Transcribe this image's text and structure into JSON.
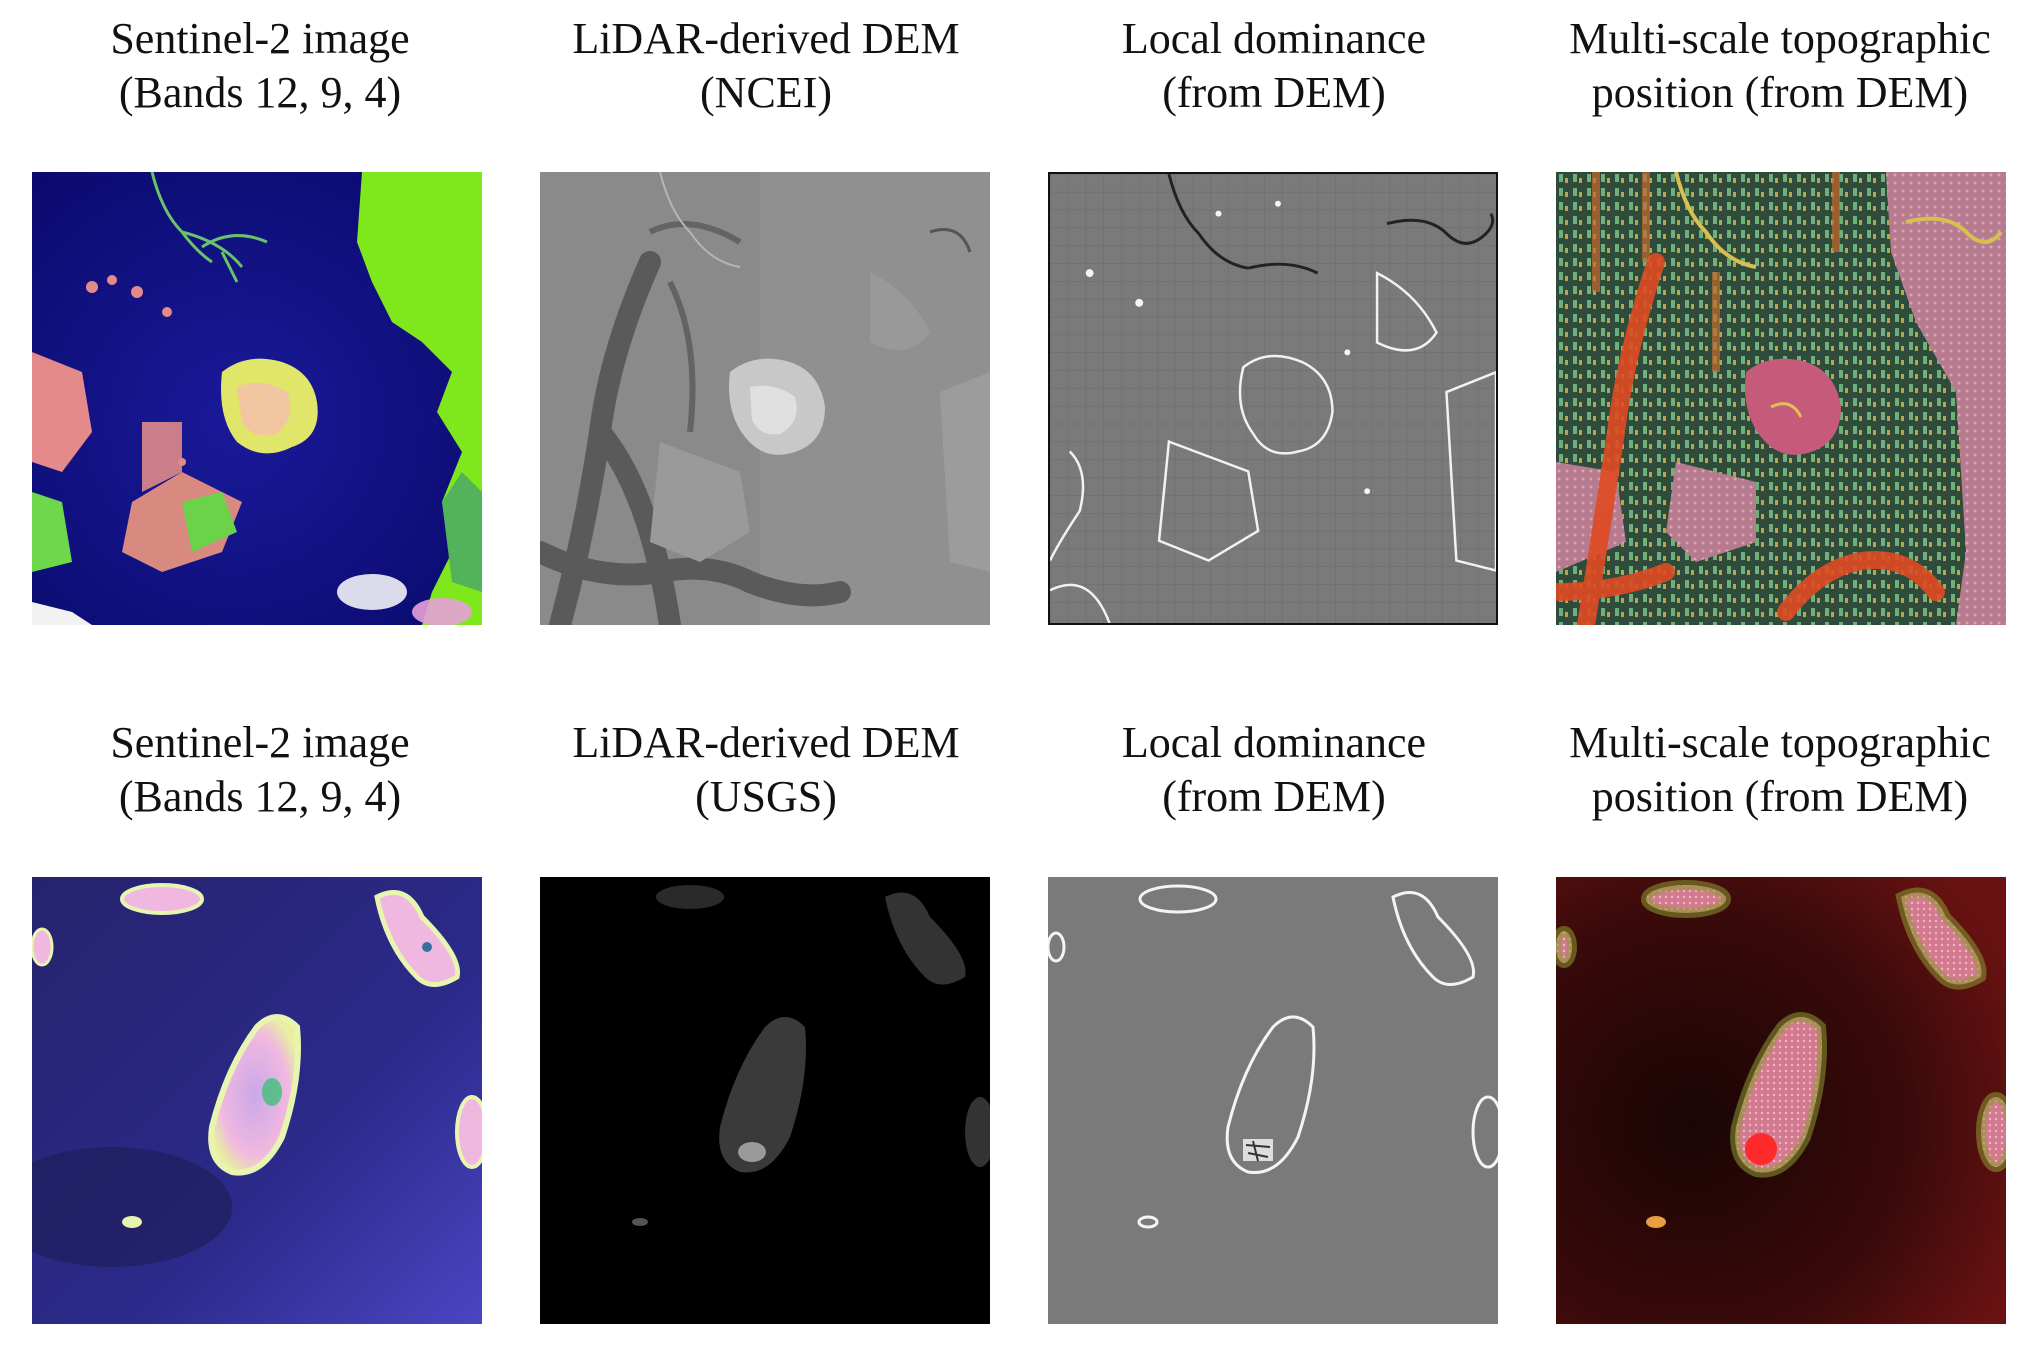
{
  "figure": {
    "rows": [
      {
        "panels": [
          {
            "title_line1": "Sentinel-2 image",
            "title_line2": "(Bands 12, 9, 4)"
          },
          {
            "title_line1": "LiDAR-derived DEM",
            "title_line2": "(NCEI)"
          },
          {
            "title_line1": "Local dominance",
            "title_line2": "(from DEM)"
          },
          {
            "title_line1": "Multi-scale topographic",
            "title_line2": "position (from DEM)"
          }
        ]
      },
      {
        "panels": [
          {
            "title_line1": "Sentinel-2 image",
            "title_line2": "(Bands 12, 9, 4)"
          },
          {
            "title_line1": "LiDAR-derived DEM",
            "title_line2": "(USGS)"
          },
          {
            "title_line1": "Local dominance",
            "title_line2": "(from DEM)"
          },
          {
            "title_line1": "Multi-scale topographic",
            "title_line2": "position (from DEM)"
          }
        ]
      }
    ]
  }
}
